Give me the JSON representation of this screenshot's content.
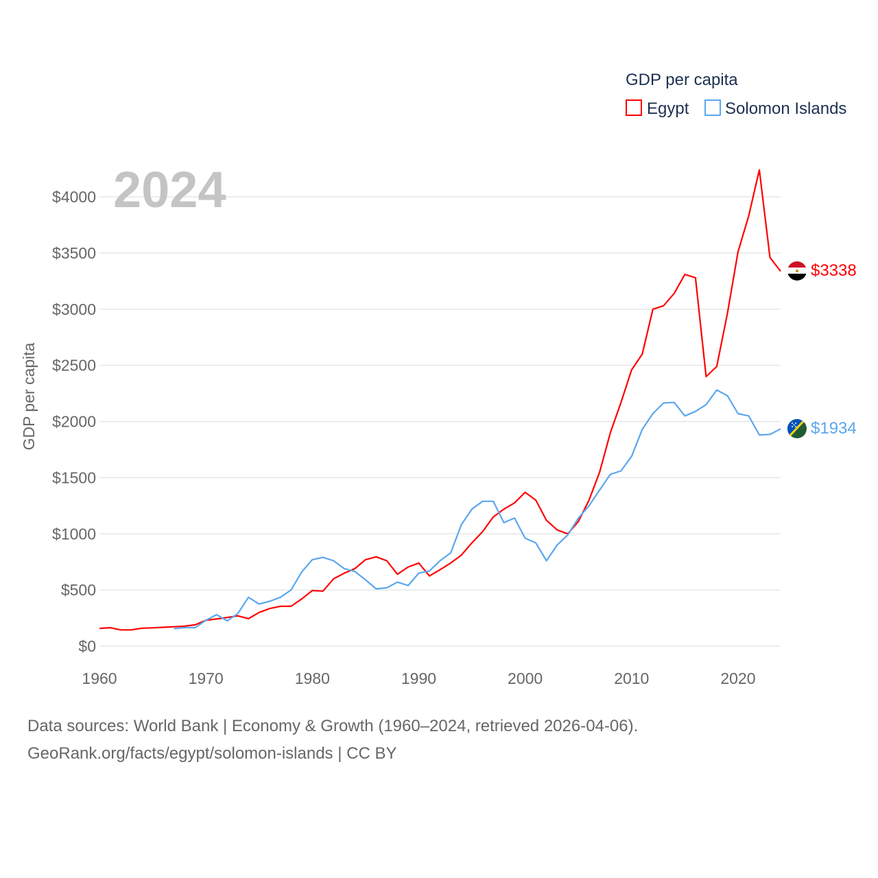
{
  "chart_data": {
    "type": "line",
    "title": "GDP per capita",
    "year_label": "2024",
    "xlabel": "",
    "ylabel": "GDP per capita",
    "xlim": [
      1960,
      2024
    ],
    "ylim": [
      0,
      4300
    ],
    "x_ticks": [
      1960,
      1970,
      1980,
      1990,
      2000,
      2010,
      2020
    ],
    "x_tick_labels": [
      "1960",
      "1970",
      "1980",
      "1990",
      "2000",
      "2010",
      "2020"
    ],
    "y_ticks": [
      0,
      500,
      1000,
      1500,
      2000,
      2500,
      3000,
      3500,
      4000
    ],
    "y_tick_labels": [
      "$0",
      "$500",
      "$1000",
      "$1500",
      "$2000",
      "$2500",
      "$3000",
      "$3500",
      "$4000"
    ],
    "grid": true,
    "legend_placement": "top-right",
    "series": [
      {
        "name": "Egypt",
        "color": "#ff0000",
        "end_label": "$3338",
        "start_year": 1960,
        "values": [
          158,
          164,
          145,
          145,
          160,
          163,
          168,
          173,
          178,
          190,
          230,
          242,
          255,
          270,
          245,
          300,
          335,
          355,
          355,
          420,
          495,
          490,
          600,
          650,
          690,
          770,
          795,
          760,
          640,
          705,
          740,
          625,
          680,
          740,
          810,
          920,
          1020,
          1150,
          1220,
          1275,
          1370,
          1300,
          1120,
          1035,
          1000,
          1110,
          1300,
          1550,
          1900,
          2170,
          2460,
          2600,
          3000,
          3030,
          3140,
          3310,
          3280,
          2400,
          2490,
          2960,
          3510,
          3830,
          4240,
          3460,
          3338
        ]
      },
      {
        "name": "Solomon Islands",
        "color": "#5ba6ee",
        "end_label": "$1934",
        "start_year": 1967,
        "values": [
          155,
          165,
          165,
          230,
          280,
          225,
          290,
          435,
          375,
          400,
          435,
          500,
          660,
          770,
          790,
          760,
          690,
          665,
          590,
          510,
          520,
          570,
          540,
          650,
          670,
          760,
          830,
          1080,
          1220,
          1290,
          1290,
          1100,
          1140,
          960,
          920,
          760,
          900,
          990,
          1140,
          1250,
          1390,
          1530,
          1560,
          1690,
          1930,
          2070,
          2165,
          2170,
          2050,
          2090,
          2150,
          2280,
          2230,
          2070,
          2050,
          1880,
          1885,
          1934
        ]
      }
    ]
  },
  "footer": {
    "line1": "Data sources: World Bank | Economy & Growth (1960–2024, retrieved 2026-04-06).",
    "line2": "GeoRank.org/facts/egypt/solomon-islands | CC BY"
  }
}
